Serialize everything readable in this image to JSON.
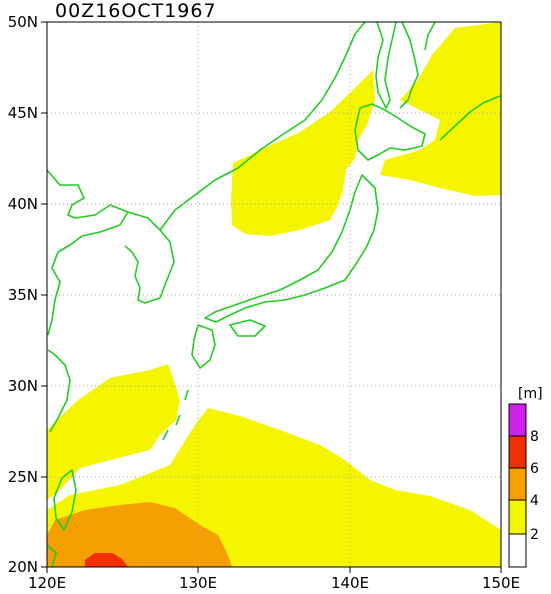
{
  "title": "00Z16OCT1967",
  "map": {
    "lon_range": [
      120,
      150
    ],
    "lat_range": [
      20,
      50
    ],
    "x_ticks": [
      "120E",
      "130E",
      "140E",
      "150E"
    ],
    "y_ticks": [
      "20N",
      "25N",
      "30N",
      "35N",
      "40N",
      "45N",
      "50N"
    ],
    "grid": "dotted",
    "coast_color": "#22cc22"
  },
  "colorbar": {
    "unit": "[m]",
    "labels": [
      "2",
      "4",
      "6",
      "8"
    ],
    "colors": [
      "#ffffff",
      "#f5f500",
      "#f5a000",
      "#f03000",
      "#d020f0"
    ]
  }
}
